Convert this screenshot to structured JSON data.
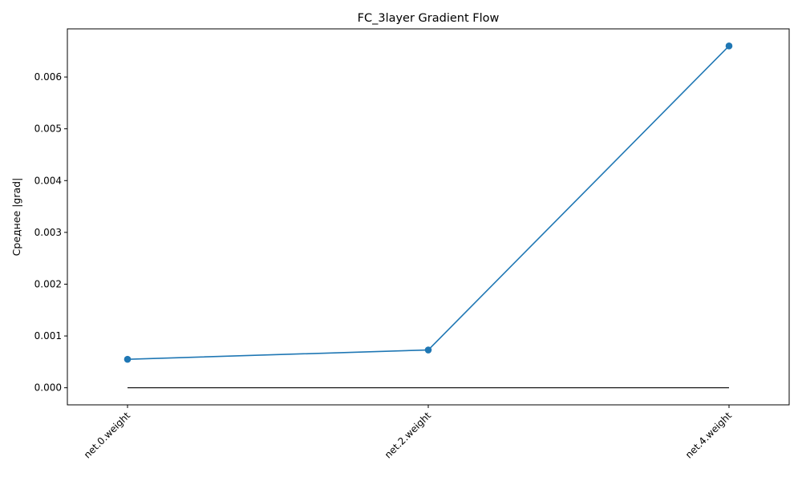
{
  "chart_data": {
    "type": "line",
    "title": "FC_3layer Gradient Flow",
    "xlabel": "",
    "ylabel": "Среднее |grad|",
    "categories": [
      "net.0.weight",
      "net.2.weight",
      "net.4.weight"
    ],
    "series": [
      {
        "values": [
          0.00055,
          0.00073,
          0.0066
        ],
        "color": "#1f77b4",
        "marker": "circle"
      }
    ],
    "reference_line": {
      "y": 0,
      "color": "#000000"
    },
    "ylim": [
      -0.00033,
      0.00693
    ],
    "yticks": [
      0.0,
      0.001,
      0.002,
      0.003,
      0.004,
      0.005,
      0.006
    ],
    "ytick_labels": [
      "0.000",
      "0.001",
      "0.002",
      "0.003",
      "0.004",
      "0.005",
      "0.006"
    ],
    "grid": false,
    "legend": "none"
  }
}
